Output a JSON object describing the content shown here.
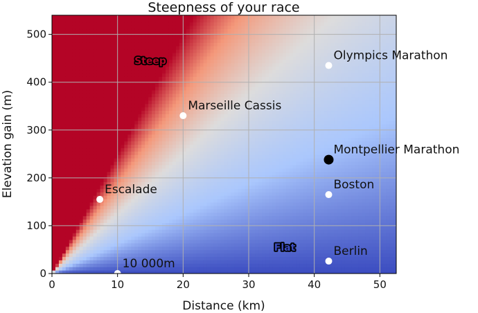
{
  "chart_data": {
    "type": "scatter",
    "title": "Steepness of your race",
    "xlabel": "Distance (km)",
    "ylabel": "Elevation gain (m)",
    "xlim": [
      0,
      52.5
    ],
    "ylim": [
      0,
      540
    ],
    "xticks": [
      0,
      10,
      20,
      30,
      40,
      50
    ],
    "yticks": [
      0,
      100,
      200,
      300,
      400,
      500
    ],
    "grid": true,
    "background": {
      "kind": "heatmap",
      "variable": "elevation gain per km",
      "colormap": [
        "#b40426",
        "#f4987a",
        "#dddcdc",
        "#aac7fd",
        "#3b4cc0"
      ],
      "steep_threshold_m_per_km": 25,
      "flat_value_m_per_km": 0
    },
    "region_labels": [
      {
        "text": "Steep",
        "x": 15,
        "y": 445,
        "color": "#b40426"
      },
      {
        "text": "Flat",
        "x": 35.5,
        "y": 55,
        "color": "#3b4cc0"
      }
    ],
    "points": [
      {
        "label": "Olympics Marathon",
        "x": 42.2,
        "y": 435,
        "highlight": false
      },
      {
        "label": "Marseille Cassis",
        "x": 20,
        "y": 330,
        "highlight": false
      },
      {
        "label": "Montpellier Marathon",
        "x": 42.2,
        "y": 238,
        "highlight": true
      },
      {
        "label": "Escalade",
        "x": 7.3,
        "y": 155,
        "highlight": false
      },
      {
        "label": "Boston",
        "x": 42.2,
        "y": 165,
        "highlight": false
      },
      {
        "label": "10 000m",
        "x": 10,
        "y": 0,
        "highlight": false
      },
      {
        "label": "Berlin",
        "x": 42.2,
        "y": 26,
        "highlight": false
      }
    ]
  }
}
